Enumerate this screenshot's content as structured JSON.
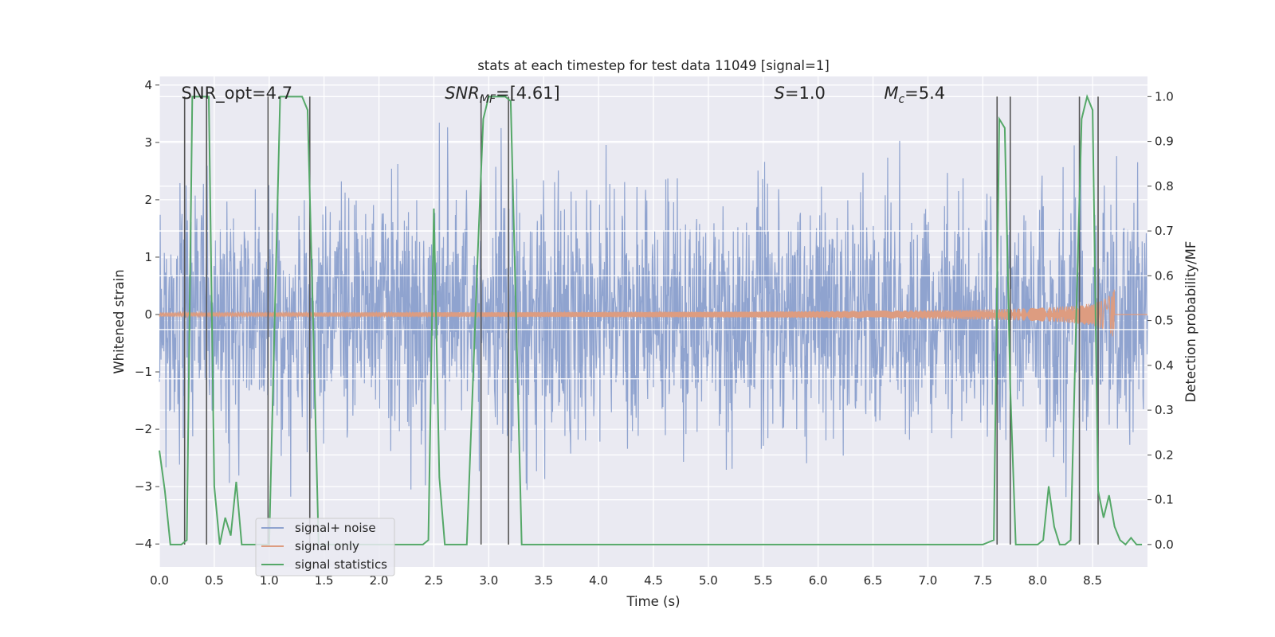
{
  "chart_data": {
    "type": "line",
    "title": "stats at each timestep for test data 11049 [signal=1]",
    "xlabel": "Time (s)",
    "ylabel": "Whitened strain",
    "y2label": "Detection probability/MF",
    "xlim": [
      0.0,
      9.0
    ],
    "ylim": [
      -4.4,
      4.15
    ],
    "y2lim": [
      -0.05,
      1.045
    ],
    "x_ticks": [
      "0.0",
      "0.5",
      "1.0",
      "1.5",
      "2.0",
      "2.5",
      "3.0",
      "3.5",
      "4.0",
      "4.5",
      "5.0",
      "5.5",
      "6.0",
      "6.5",
      "7.0",
      "7.5",
      "8.0",
      "8.5"
    ],
    "y_ticks": [
      "4",
      "3",
      "2",
      "1",
      "0",
      "−1",
      "−2",
      "−3",
      "−4"
    ],
    "y2_ticks": [
      "1.0",
      "0.9",
      "0.8",
      "0.7",
      "0.6",
      "0.5",
      "0.4",
      "0.3",
      "0.2",
      "0.1",
      "0.0"
    ],
    "grid": true,
    "legend_position": "lower-left",
    "annotations": [
      {
        "text": "SNR_opt=4.7",
        "x": 0.2
      },
      {
        "text": "SNR_MF=[4.61]",
        "x": 2.6,
        "main": "SNR",
        "sub": "MF",
        "rest": "=[4.61]"
      },
      {
        "text": "S=1.0",
        "x": 5.6,
        "main": "S",
        "sub": "",
        "rest": "=1.0"
      },
      {
        "text": "M_c=5.4",
        "x": 6.6,
        "main": "M",
        "sub": "c",
        "rest": "=5.4"
      }
    ],
    "series": [
      {
        "name": "signal+ noise",
        "color": "#8fa3cf",
        "kind": "noise",
        "std": 1.0,
        "seed": 11049
      },
      {
        "name": "signal only",
        "color": "#dd9c80",
        "kind": "chirp",
        "amp_max": 0.45,
        "t_end": 8.7
      },
      {
        "name": "signal statistics",
        "color": "#55a868",
        "kind": "stat",
        "x": [
          0.0,
          0.05,
          0.1,
          0.2,
          0.25,
          0.3,
          0.35,
          0.4,
          0.45,
          0.5,
          0.55,
          0.6,
          0.65,
          0.7,
          0.75,
          0.8,
          0.9,
          1.0,
          1.05,
          1.1,
          1.2,
          1.3,
          1.35,
          1.4,
          1.45,
          1.5,
          1.6,
          2.0,
          2.4,
          2.45,
          2.5,
          2.55,
          2.6,
          2.65,
          2.7,
          2.8,
          2.9,
          2.95,
          3.0,
          3.05,
          3.1,
          3.15,
          3.2,
          3.25,
          3.3,
          3.5,
          4.0,
          5.0,
          6.0,
          7.0,
          7.5,
          7.6,
          7.65,
          7.7,
          7.75,
          7.8,
          7.85,
          8.0,
          8.05,
          8.1,
          8.15,
          8.2,
          8.25,
          8.3,
          8.35,
          8.4,
          8.45,
          8.5,
          8.55,
          8.6,
          8.65,
          8.7,
          8.75,
          8.8,
          8.85,
          8.9,
          8.95
        ],
        "y": [
          0.21,
          0.12,
          0.0,
          0.0,
          0.01,
          1.0,
          1.0,
          1.0,
          1.0,
          0.13,
          0.0,
          0.06,
          0.02,
          0.14,
          0.0,
          0.0,
          0.0,
          0.0,
          0.5,
          1.0,
          1.0,
          1.0,
          0.97,
          0.5,
          0.0,
          0.0,
          0.0,
          0.0,
          0.0,
          0.01,
          0.75,
          0.15,
          0.0,
          0.0,
          0.0,
          0.0,
          0.65,
          0.95,
          1.0,
          1.0,
          1.0,
          1.0,
          0.99,
          0.5,
          0.0,
          0.0,
          0.0,
          0.0,
          0.0,
          0.0,
          0.0,
          0.01,
          0.95,
          0.93,
          0.35,
          0.0,
          0.0,
          0.0,
          0.01,
          0.13,
          0.04,
          0.0,
          0.0,
          0.01,
          0.5,
          0.95,
          1.0,
          0.97,
          0.12,
          0.06,
          0.11,
          0.04,
          0.01,
          0.0,
          0.015,
          0.0,
          0.0
        ]
      }
    ],
    "vlines": [
      0.23,
      0.43,
      0.99,
      1.37,
      2.93,
      3.18,
      7.63,
      7.75,
      8.38,
      8.55
    ],
    "hlines_y2": [
      0.7,
      0.6,
      0.48,
      0.37
    ]
  }
}
